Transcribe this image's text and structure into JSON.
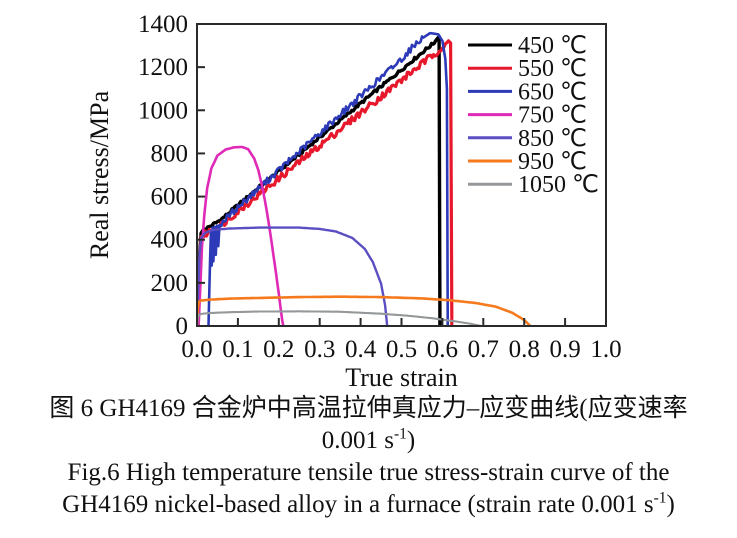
{
  "caption": {
    "cn_line1": "图 6  GH4169 合金炉中高温拉伸真应力–应变曲线(应变速率",
    "cn_line2_pre": "0.001 s",
    "cn_line2_sup": "-1",
    "cn_line2_post": ")",
    "en_line1": "Fig.6  High temperature tensile true stress-strain curve of the",
    "en_line2_pre": "GH4169 nickel-based alloy in a furnace (strain rate 0.001 s",
    "en_line2_sup": "-1",
    "en_line2_post": ")"
  },
  "chart_data": {
    "type": "line",
    "title": "",
    "xlabel": "True strain",
    "ylabel": "Real stress/MPa",
    "xlim": [
      0.0,
      1.0
    ],
    "ylim": [
      0,
      1400
    ],
    "xticks": [
      "0.0",
      "0.1",
      "0.2",
      "0.3",
      "0.4",
      "0.5",
      "0.6",
      "0.7",
      "0.8",
      "0.9",
      "1.0"
    ],
    "yticks": [
      "0",
      "200",
      "400",
      "600",
      "800",
      "1000",
      "1200",
      "1400"
    ],
    "grid": false,
    "legend_position": "inside top-right",
    "axis_color": "#2a2a2a",
    "series": [
      {
        "name": "450 ℃",
        "color": "#000000",
        "width": 3.4,
        "noise": 7,
        "noise_range": [
          0.02,
          0.585
        ],
        "points": [
          [
            0,
            0
          ],
          [
            0.004,
            180
          ],
          [
            0.007,
            350
          ],
          [
            0.01,
            430
          ],
          [
            0.015,
            445
          ],
          [
            0.03,
            460
          ],
          [
            0.06,
            495
          ],
          [
            0.1,
            560
          ],
          [
            0.15,
            640
          ],
          [
            0.2,
            718
          ],
          [
            0.25,
            796
          ],
          [
            0.3,
            875
          ],
          [
            0.35,
            953
          ],
          [
            0.4,
            1032
          ],
          [
            0.45,
            1110
          ],
          [
            0.5,
            1188
          ],
          [
            0.55,
            1267
          ],
          [
            0.58,
            1314
          ],
          [
            0.59,
            1338
          ],
          [
            0.592,
            1330
          ],
          [
            0.594,
            60
          ],
          [
            0.594,
            0
          ]
        ]
      },
      {
        "name": "550 ℃",
        "color": "#e8182c",
        "width": 3.2,
        "noise": 16,
        "noise_range": [
          0.015,
          0.612
        ],
        "points": [
          [
            0,
            0
          ],
          [
            0.004,
            160
          ],
          [
            0.007,
            330
          ],
          [
            0.01,
            415
          ],
          [
            0.02,
            425
          ],
          [
            0.03,
            438
          ],
          [
            0.06,
            470
          ],
          [
            0.1,
            532
          ],
          [
            0.15,
            608
          ],
          [
            0.2,
            684
          ],
          [
            0.25,
            760
          ],
          [
            0.3,
            836
          ],
          [
            0.35,
            912
          ],
          [
            0.4,
            988
          ],
          [
            0.45,
            1064
          ],
          [
            0.5,
            1140
          ],
          [
            0.55,
            1216
          ],
          [
            0.6,
            1292
          ],
          [
            0.615,
            1322
          ],
          [
            0.62,
            1312
          ],
          [
            0.623,
            50
          ],
          [
            0.623,
            0
          ]
        ]
      },
      {
        "name": "650 ℃",
        "color": "#2c3ab8",
        "width": 2.6,
        "noise": 15,
        "noise_range": [
          0.06,
          0.55
        ],
        "points": [
          [
            0.028,
            0
          ],
          [
            0.03,
            160
          ],
          [
            0.032,
            310
          ],
          [
            0.034,
            430
          ],
          [
            0.036,
            280
          ],
          [
            0.038,
            455
          ],
          [
            0.04,
            300
          ],
          [
            0.043,
            460
          ],
          [
            0.046,
            330
          ],
          [
            0.049,
            465
          ],
          [
            0.052,
            370
          ],
          [
            0.055,
            468
          ],
          [
            0.06,
            478
          ],
          [
            0.08,
            515
          ],
          [
            0.1,
            550
          ],
          [
            0.15,
            636
          ],
          [
            0.2,
            722
          ],
          [
            0.25,
            808
          ],
          [
            0.3,
            894
          ],
          [
            0.35,
            980
          ],
          [
            0.4,
            1066
          ],
          [
            0.45,
            1152
          ],
          [
            0.5,
            1238
          ],
          [
            0.54,
            1320
          ],
          [
            0.57,
            1358
          ],
          [
            0.59,
            1352
          ],
          [
            0.6,
            1322
          ],
          [
            0.607,
            1240
          ],
          [
            0.611,
            1100
          ],
          [
            0.613,
            60
          ],
          [
            0.613,
            0
          ]
        ]
      },
      {
        "name": "750 ℃",
        "color": "#df2ab8",
        "width": 2.6,
        "noise": 0,
        "noise_range": [
          0,
          0
        ],
        "points": [
          [
            0.004,
            0
          ],
          [
            0.008,
            180
          ],
          [
            0.012,
            360
          ],
          [
            0.018,
            520
          ],
          [
            0.025,
            640
          ],
          [
            0.035,
            730
          ],
          [
            0.05,
            790
          ],
          [
            0.07,
            818
          ],
          [
            0.09,
            828
          ],
          [
            0.11,
            830
          ],
          [
            0.125,
            820
          ],
          [
            0.14,
            776
          ],
          [
            0.15,
            722
          ],
          [
            0.16,
            642
          ],
          [
            0.17,
            540
          ],
          [
            0.18,
            420
          ],
          [
            0.19,
            288
          ],
          [
            0.2,
            150
          ],
          [
            0.208,
            30
          ],
          [
            0.211,
            0
          ]
        ]
      },
      {
        "name": "850 ℃",
        "color": "#5a4ec2",
        "width": 2.4,
        "noise": 0,
        "noise_range": [
          0,
          0
        ],
        "points": [
          [
            0,
            0
          ],
          [
            0.003,
            160
          ],
          [
            0.006,
            330
          ],
          [
            0.01,
            408
          ],
          [
            0.02,
            432
          ],
          [
            0.04,
            446
          ],
          [
            0.08,
            452
          ],
          [
            0.15,
            456
          ],
          [
            0.25,
            456
          ],
          [
            0.3,
            450
          ],
          [
            0.34,
            438
          ],
          [
            0.38,
            408
          ],
          [
            0.41,
            358
          ],
          [
            0.43,
            296
          ],
          [
            0.45,
            196
          ],
          [
            0.46,
            96
          ],
          [
            0.465,
            0
          ]
        ]
      },
      {
        "name": "950 ℃",
        "color": "#f57a1e",
        "width": 2.6,
        "noise": 0,
        "noise_range": [
          0,
          0
        ],
        "points": [
          [
            0,
            0
          ],
          [
            0.002,
            80
          ],
          [
            0.005,
            112
          ],
          [
            0.01,
            118
          ],
          [
            0.03,
            122
          ],
          [
            0.08,
            127
          ],
          [
            0.15,
            130
          ],
          [
            0.25,
            134
          ],
          [
            0.35,
            136
          ],
          [
            0.45,
            134
          ],
          [
            0.55,
            128
          ],
          [
            0.62,
            119
          ],
          [
            0.68,
            107
          ],
          [
            0.73,
            90
          ],
          [
            0.77,
            62
          ],
          [
            0.8,
            28
          ],
          [
            0.815,
            0
          ]
        ]
      },
      {
        "name": "1050 ℃",
        "color": "#95989a",
        "width": 2.1,
        "noise": 0,
        "noise_range": [
          0,
          0
        ],
        "points": [
          [
            0,
            0
          ],
          [
            0.002,
            40
          ],
          [
            0.005,
            52
          ],
          [
            0.01,
            56
          ],
          [
            0.03,
            60
          ],
          [
            0.08,
            64
          ],
          [
            0.15,
            67
          ],
          [
            0.25,
            68
          ],
          [
            0.35,
            66
          ],
          [
            0.45,
            57
          ],
          [
            0.52,
            47
          ],
          [
            0.58,
            35
          ],
          [
            0.63,
            22
          ],
          [
            0.67,
            10
          ],
          [
            0.695,
            0
          ]
        ]
      }
    ]
  }
}
